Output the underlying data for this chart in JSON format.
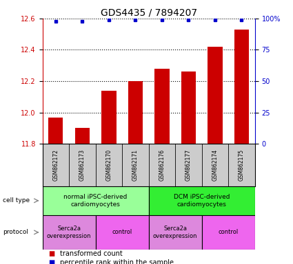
{
  "title": "GDS4435 / 7894207",
  "samples": [
    "GSM862172",
    "GSM862173",
    "GSM862170",
    "GSM862171",
    "GSM862176",
    "GSM862177",
    "GSM862174",
    "GSM862175"
  ],
  "bar_values": [
    11.97,
    11.9,
    12.14,
    12.2,
    12.28,
    12.26,
    12.42,
    12.53
  ],
  "percentile_values": [
    98,
    98,
    99,
    99,
    99,
    99,
    99,
    99
  ],
  "ylim_left": [
    11.8,
    12.6
  ],
  "ylim_right": [
    0,
    100
  ],
  "yticks_left": [
    11.8,
    12.0,
    12.2,
    12.4,
    12.6
  ],
  "yticks_right": [
    0,
    25,
    50,
    75,
    100
  ],
  "bar_color": "#cc0000",
  "dot_color": "#0000cc",
  "bar_width": 0.55,
  "cell_type_groups": [
    {
      "label": "normal iPSC-derived\ncardiomyocytes",
      "start": 0,
      "end": 3,
      "color": "#99ff99"
    },
    {
      "label": "DCM iPSC-derived\ncardiomyocytes",
      "start": 4,
      "end": 7,
      "color": "#33ee33"
    }
  ],
  "protocol_groups": [
    {
      "label": "Serca2a\noverexpression",
      "start": 0,
      "end": 1,
      "color": "#dd88dd"
    },
    {
      "label": "control",
      "start": 2,
      "end": 3,
      "color": "#ee66ee"
    },
    {
      "label": "Serca2a\noverexpression",
      "start": 4,
      "end": 5,
      "color": "#dd88dd"
    },
    {
      "label": "control",
      "start": 6,
      "end": 7,
      "color": "#ee66ee"
    }
  ],
  "legend_items": [
    {
      "label": "transformed count",
      "color": "#cc0000",
      "marker": "s"
    },
    {
      "label": "percentile rank within the sample",
      "color": "#0000cc",
      "marker": "s"
    }
  ],
  "left_axis_color": "#cc0000",
  "right_axis_color": "#0000cc",
  "background_color": "#ffffff",
  "xlabel_bg_color": "#cccccc",
  "title_fontsize": 10,
  "tick_fontsize": 7,
  "sample_fontsize": 5.5,
  "annotation_fontsize": 6.5,
  "legend_fontsize": 7
}
